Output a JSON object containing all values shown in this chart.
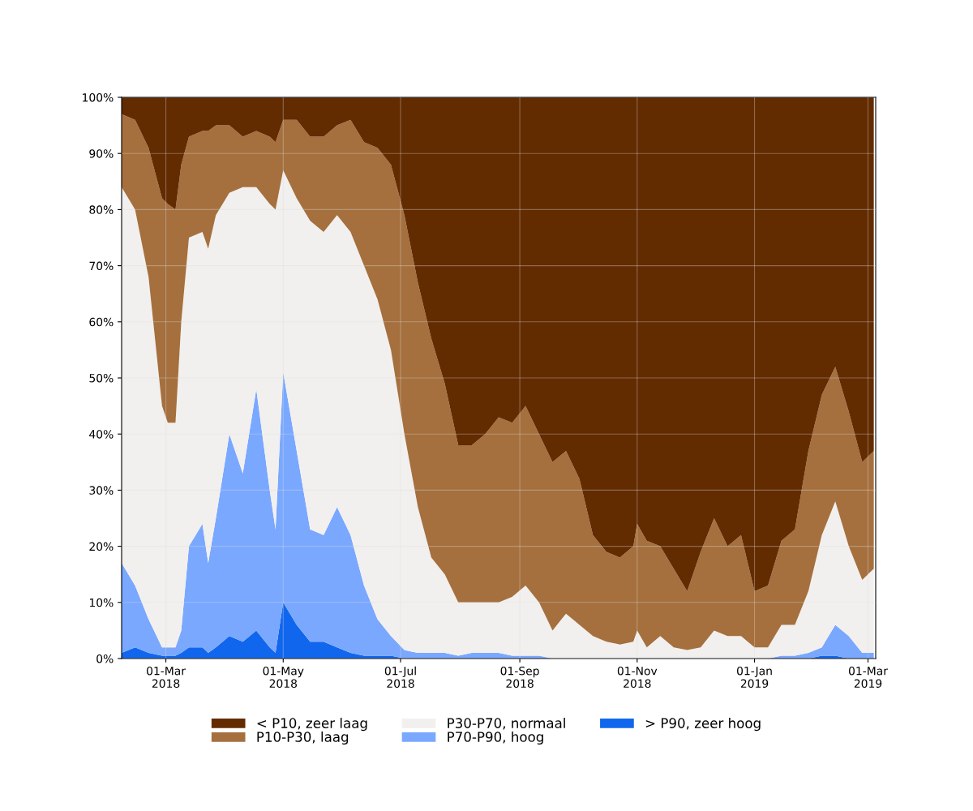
{
  "chart_data": {
    "type": "area",
    "stacked": true,
    "x": [
      "2018-02-06",
      "2018-02-13",
      "2018-02-20",
      "2018-02-27",
      "2018-03-02",
      "2018-03-06",
      "2018-03-09",
      "2018-03-13",
      "2018-03-20",
      "2018-03-23",
      "2018-03-27",
      "2018-04-03",
      "2018-04-10",
      "2018-04-17",
      "2018-04-24",
      "2018-04-27",
      "2018-05-01",
      "2018-05-08",
      "2018-05-15",
      "2018-05-22",
      "2018-05-29",
      "2018-06-05",
      "2018-06-12",
      "2018-06-19",
      "2018-06-26",
      "2018-07-03",
      "2018-07-10",
      "2018-07-17",
      "2018-07-24",
      "2018-07-31",
      "2018-08-07",
      "2018-08-14",
      "2018-08-21",
      "2018-08-28",
      "2018-09-04",
      "2018-09-11",
      "2018-09-18",
      "2018-09-25",
      "2018-10-02",
      "2018-10-09",
      "2018-10-16",
      "2018-10-23",
      "2018-10-30",
      "2018-11-01",
      "2018-11-06",
      "2018-11-13",
      "2018-11-20",
      "2018-11-27",
      "2018-12-04",
      "2018-12-11",
      "2018-12-18",
      "2018-12-25",
      "2019-01-01",
      "2019-01-08",
      "2019-01-15",
      "2019-01-22",
      "2019-01-29",
      "2019-02-05",
      "2019-02-12",
      "2019-02-19",
      "2019-02-26",
      "2019-03-04"
    ],
    "series": [
      {
        "name": "> P90, zeer hoog",
        "color": "#1166ee",
        "values": [
          1,
          2,
          1,
          0.5,
          0.5,
          0.5,
          1,
          2,
          2,
          1,
          2,
          4,
          3,
          5,
          2,
          1,
          10,
          6,
          3,
          3,
          2,
          1,
          0.5,
          0.5,
          0.5,
          0,
          0,
          0,
          0,
          0,
          0,
          0,
          0,
          0,
          0,
          0,
          0,
          0,
          0,
          0,
          0,
          0,
          0,
          0,
          0,
          0,
          0,
          0,
          0,
          0,
          0,
          0,
          0,
          0,
          0,
          0,
          0,
          0.5,
          0.5,
          0,
          0,
          0
        ]
      },
      {
        "name": "P70-P90, hoog",
        "color": "#7aa8ff",
        "values": [
          16,
          11,
          6,
          1.5,
          1.5,
          1.5,
          4,
          18,
          22,
          16,
          23,
          36,
          30,
          43,
          28,
          22,
          41,
          31,
          20,
          19,
          25,
          21,
          12.5,
          6.5,
          3.5,
          1.5,
          1,
          1,
          1,
          0.5,
          1,
          1,
          1,
          0.5,
          0.5,
          0.5,
          0,
          0,
          0,
          0,
          0,
          0,
          0,
          0,
          0,
          0,
          0,
          0,
          0,
          0,
          0,
          0,
          0,
          0,
          0.5,
          0.5,
          1,
          1.5,
          5.5,
          4,
          1,
          1
        ]
      },
      {
        "name": "P30-P70, normaal",
        "color": "#f2f0ee",
        "values": [
          67,
          67,
          61,
          43,
          40,
          40,
          55,
          55,
          52,
          56,
          54,
          43,
          51,
          36,
          51,
          57,
          36,
          45,
          55,
          54,
          52,
          54,
          57,
          57,
          51,
          38.5,
          26,
          17,
          14,
          9.5,
          9,
          9,
          9,
          10.5,
          12.5,
          9.5,
          5,
          8,
          6,
          4,
          3,
          2.5,
          3,
          5,
          2,
          4,
          2,
          1.5,
          2,
          5,
          4,
          4,
          2,
          2,
          5.5,
          5.5,
          11,
          20,
          22,
          16,
          13,
          15
        ]
      },
      {
        "name": "P10-P30, laag",
        "color": "#a5703e",
        "values": [
          13,
          16,
          23,
          37,
          39,
          38,
          28,
          18,
          18,
          21,
          16,
          12,
          9,
          10,
          12,
          12,
          9,
          14,
          15,
          17,
          16,
          20,
          22,
          27,
          33,
          39,
          40,
          39,
          34,
          28,
          28,
          30,
          33,
          31,
          32,
          30,
          30,
          29,
          26,
          18,
          16,
          15.5,
          17,
          19,
          19,
          16,
          14,
          10.5,
          17,
          20,
          16,
          18,
          10,
          11,
          15,
          17,
          25,
          25,
          24,
          24,
          21,
          21
        ]
      },
      {
        "name": "< P10, zeer laag",
        "color": "#632b00",
        "values": [
          3,
          4,
          9,
          18,
          19,
          20,
          12,
          7,
          6,
          6,
          5,
          5,
          7,
          6,
          7,
          8,
          4,
          4,
          7,
          7,
          5,
          4,
          8,
          9,
          12,
          21,
          33,
          43,
          51,
          62,
          62,
          60,
          57,
          58,
          55,
          60,
          65,
          63,
          68,
          78,
          81,
          82,
          80,
          76,
          79,
          80,
          84,
          88,
          81,
          75,
          80,
          78,
          88,
          87,
          79,
          77,
          63,
          53,
          48,
          56,
          65,
          63
        ]
      }
    ],
    "xlim": [
      "2018-02-06",
      "2019-03-05"
    ],
    "xticks": [
      {
        "value": "2018-03-01",
        "label": "01-Mar\n2018"
      },
      {
        "value": "2018-05-01",
        "label": "01-May\n2018"
      },
      {
        "value": "2018-07-01",
        "label": "01-Jul\n2018"
      },
      {
        "value": "2018-09-01",
        "label": "01-Sep\n2018"
      },
      {
        "value": "2018-11-01",
        "label": "01-Nov\n2018"
      },
      {
        "value": "2019-01-01",
        "label": "01-Jan\n2019"
      },
      {
        "value": "2019-03-01",
        "label": "01-Mar\n2019"
      }
    ],
    "ylim": [
      0,
      100
    ],
    "yticks": [
      {
        "value": 0,
        "label": "0%"
      },
      {
        "value": 10,
        "label": "10%"
      },
      {
        "value": 20,
        "label": "20%"
      },
      {
        "value": 30,
        "label": "30%"
      },
      {
        "value": 40,
        "label": "40%"
      },
      {
        "value": 50,
        "label": "50%"
      },
      {
        "value": 60,
        "label": "60%"
      },
      {
        "value": 70,
        "label": "70%"
      },
      {
        "value": 80,
        "label": "80%"
      },
      {
        "value": 90,
        "label": "90%"
      },
      {
        "value": 100,
        "label": "100%"
      }
    ],
    "grid": true,
    "legend": "bottom"
  }
}
